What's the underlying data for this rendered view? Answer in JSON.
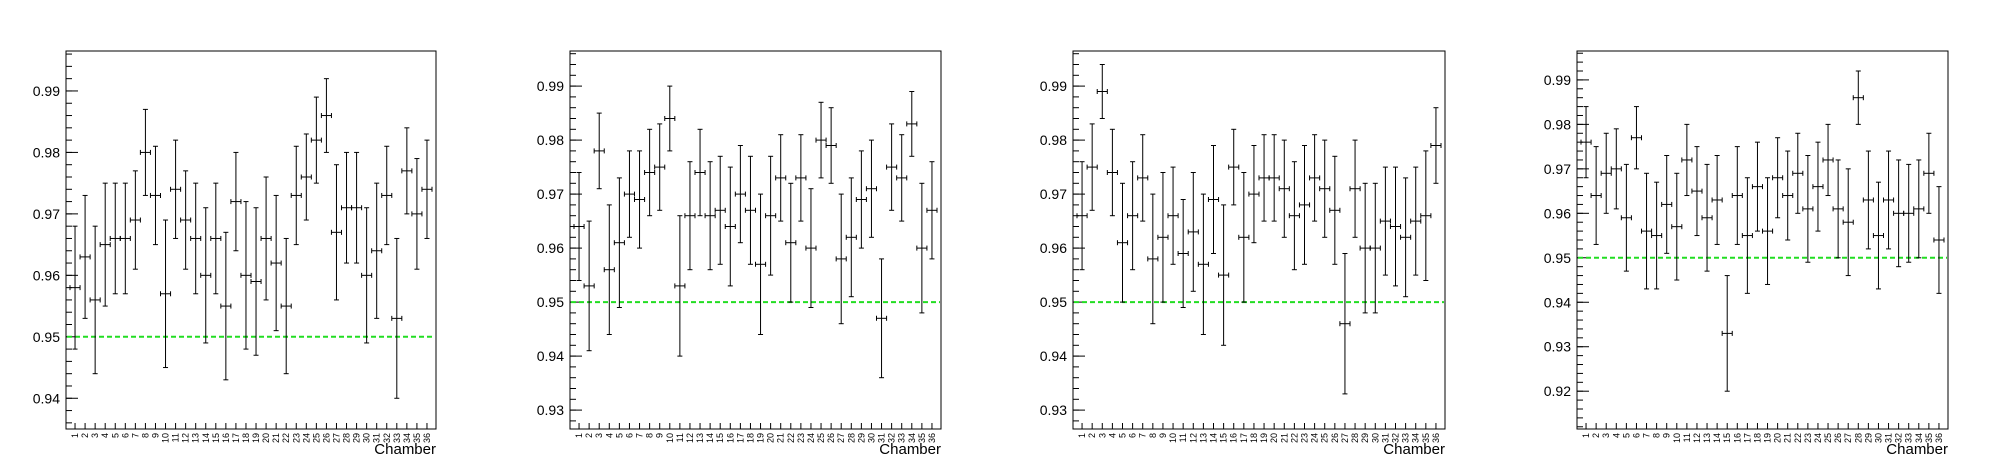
{
  "chart_data": [
    {
      "type": "scatter",
      "xlabel": "Chamber",
      "ylim": [
        0.935,
        0.9965
      ],
      "yticks": [
        0.94,
        0.95,
        0.96,
        0.97,
        0.98,
        0.99
      ],
      "ytick_labels": [
        "0.94",
        "0.95",
        "0.96",
        "0.97",
        "0.98",
        "0.99"
      ],
      "reference_line": 0.95,
      "reference_color": "#22dd22",
      "categories": [
        "1",
        "2",
        "3",
        "4",
        "5",
        "6",
        "7",
        "8",
        "9",
        "10",
        "11",
        "12",
        "13",
        "14",
        "15",
        "16",
        "17",
        "18",
        "19",
        "20",
        "21",
        "22",
        "23",
        "24",
        "25",
        "26",
        "27",
        "28",
        "29",
        "30",
        "31",
        "32",
        "33",
        "34",
        "35",
        "36"
      ],
      "category_labels": [
        "1",
        "2",
        "3",
        "4",
        "5",
        "6",
        "7",
        "8",
        "9",
        "10",
        "11",
        "12",
        "13",
        "14",
        "15",
        "16",
        "17",
        "18",
        "19",
        "20",
        "21",
        "22",
        "23",
        "24",
        "25",
        "26",
        "27",
        "28",
        "29",
        "30",
        "31",
        "32",
        "33",
        "34",
        "35",
        "36"
      ],
      "values": [
        0.958,
        0.963,
        0.956,
        0.965,
        0.966,
        0.966,
        0.969,
        0.98,
        0.973,
        0.957,
        0.974,
        0.969,
        0.966,
        0.96,
        0.966,
        0.955,
        0.972,
        0.96,
        0.959,
        0.966,
        0.962,
        0.955,
        0.973,
        0.976,
        0.982,
        0.986,
        0.967,
        0.971,
        0.971,
        0.96,
        0.964,
        0.973,
        0.953,
        0.977,
        0.97,
        0.974
      ],
      "errors": [
        0.01,
        0.01,
        0.012,
        0.01,
        0.009,
        0.009,
        0.008,
        0.007,
        0.008,
        0.012,
        0.008,
        0.008,
        0.009,
        0.011,
        0.009,
        0.012,
        0.008,
        0.012,
        0.012,
        0.01,
        0.011,
        0.011,
        0.008,
        0.007,
        0.007,
        0.006,
        0.011,
        0.009,
        0.009,
        0.011,
        0.011,
        0.008,
        0.013,
        0.007,
        0.009,
        0.008
      ]
    },
    {
      "type": "scatter",
      "xlabel": "Chamber",
      "ylim": [
        0.9265,
        0.9965
      ],
      "yticks": [
        0.93,
        0.94,
        0.95,
        0.96,
        0.97,
        0.98,
        0.99
      ],
      "ytick_labels": [
        "0.93",
        "0.94",
        "0.95",
        "0.96",
        "0.97",
        "0.98",
        "0.99"
      ],
      "reference_line": 0.95,
      "reference_color": "#22dd22",
      "categories": [
        "1",
        "2",
        "3",
        "4",
        "5",
        "6",
        "7",
        "8",
        "9",
        "10",
        "11",
        "12",
        "13",
        "14",
        "15",
        "16",
        "17",
        "18",
        "19",
        "20",
        "21",
        "22",
        "23",
        "24",
        "25",
        "26",
        "27",
        "28",
        "29",
        "30",
        "31",
        "32",
        "33",
        "34",
        "35",
        "36"
      ],
      "category_labels": [
        "1",
        "2",
        "3",
        "4",
        "5",
        "6",
        "7",
        "8",
        "9",
        "10",
        "11",
        "12",
        "13",
        "14",
        "15",
        "16",
        "17",
        "18",
        "19",
        "20",
        "21",
        "22",
        "23",
        "24",
        "25",
        "26",
        "27",
        "28",
        "29",
        "30",
        "31",
        "32",
        "33",
        "34",
        "35",
        "36"
      ],
      "values": [
        0.964,
        0.953,
        0.978,
        0.956,
        0.961,
        0.97,
        0.969,
        0.974,
        0.975,
        0.984,
        0.953,
        0.966,
        0.974,
        0.966,
        0.967,
        0.964,
        0.97,
        0.967,
        0.957,
        0.966,
        0.973,
        0.961,
        0.973,
        0.96,
        0.98,
        0.979,
        0.958,
        0.962,
        0.969,
        0.971,
        0.947,
        0.975,
        0.973,
        0.983,
        0.96,
        0.967
      ],
      "errors": [
        0.01,
        0.012,
        0.007,
        0.012,
        0.012,
        0.008,
        0.009,
        0.008,
        0.008,
        0.006,
        0.013,
        0.01,
        0.008,
        0.01,
        0.01,
        0.011,
        0.009,
        0.01,
        0.013,
        0.011,
        0.008,
        0.011,
        0.008,
        0.011,
        0.007,
        0.007,
        0.012,
        0.011,
        0.009,
        0.009,
        0.011,
        0.008,
        0.008,
        0.006,
        0.012,
        0.009
      ]
    },
    {
      "type": "scatter",
      "xlabel": "Chamber",
      "ylim": [
        0.9265,
        0.9965
      ],
      "yticks": [
        0.93,
        0.94,
        0.95,
        0.96,
        0.97,
        0.98,
        0.99
      ],
      "ytick_labels": [
        "0.93",
        "0.94",
        "0.95",
        "0.96",
        "0.97",
        "0.98",
        "0.99"
      ],
      "reference_line": 0.95,
      "reference_color": "#22dd22",
      "categories": [
        "1",
        "2",
        "3",
        "4",
        "5",
        "6",
        "7",
        "8",
        "9",
        "10",
        "11",
        "12",
        "13",
        "14",
        "15",
        "16",
        "17",
        "18",
        "19",
        "20",
        "21",
        "22",
        "23",
        "24",
        "25",
        "26",
        "27",
        "28",
        "29",
        "30",
        "31",
        "32",
        "33",
        "34",
        "35",
        "36"
      ],
      "category_labels": [
        "1",
        "2",
        "3",
        "4",
        "5",
        "6",
        "7",
        "8",
        "9",
        "10",
        "11",
        "12",
        "13",
        "14",
        "15",
        "16",
        "17",
        "18",
        "19",
        "20",
        "21",
        "22",
        "23",
        "24",
        "25",
        "26",
        "27",
        "28",
        "29",
        "30",
        "31",
        "32",
        "33",
        "34",
        "35",
        "36"
      ],
      "values": [
        0.966,
        0.975,
        0.989,
        0.974,
        0.961,
        0.966,
        0.973,
        0.958,
        0.962,
        0.966,
        0.959,
        0.963,
        0.957,
        0.969,
        0.955,
        0.975,
        0.962,
        0.97,
        0.973,
        0.973,
        0.971,
        0.966,
        0.968,
        0.973,
        0.971,
        0.967,
        0.946,
        0.971,
        0.96,
        0.96,
        0.965,
        0.964,
        0.962,
        0.965,
        0.966,
        0.979
      ],
      "errors": [
        0.01,
        0.008,
        0.005,
        0.008,
        0.011,
        0.01,
        0.008,
        0.012,
        0.012,
        0.009,
        0.01,
        0.011,
        0.013,
        0.01,
        0.013,
        0.007,
        0.012,
        0.009,
        0.008,
        0.008,
        0.009,
        0.01,
        0.011,
        0.008,
        0.009,
        0.01,
        0.013,
        0.009,
        0.012,
        0.012,
        0.01,
        0.011,
        0.011,
        0.01,
        0.012,
        0.007
      ]
    },
    {
      "type": "scatter",
      "xlabel": "Chamber",
      "ylim": [
        0.9115,
        0.9965
      ],
      "yticks": [
        0.92,
        0.93,
        0.94,
        0.95,
        0.96,
        0.97,
        0.98,
        0.99
      ],
      "ytick_labels": [
        "0.92",
        "0.93",
        "0.94",
        "0.95",
        "0.96",
        "0.97",
        "0.98",
        "0.99"
      ],
      "reference_line": 0.95,
      "reference_color": "#22dd22",
      "categories": [
        "1",
        "2",
        "3",
        "4",
        "5",
        "6",
        "7",
        "8",
        "9",
        "10",
        "11",
        "12",
        "13",
        "14",
        "15",
        "16",
        "17",
        "18",
        "19",
        "20",
        "21",
        "22",
        "23",
        "24",
        "25",
        "26",
        "27",
        "28",
        "29",
        "30",
        "31",
        "32",
        "33",
        "34",
        "35",
        "36"
      ],
      "category_labels": [
        "1",
        "2",
        "3",
        "4",
        "5",
        "6",
        "7",
        "8",
        "9",
        "10",
        "11",
        "12",
        "13",
        "14",
        "15",
        "16",
        "17",
        "18",
        "19",
        "20",
        "21",
        "22",
        "23",
        "24",
        "25",
        "26",
        "27",
        "28",
        "29",
        "30",
        "31",
        "32",
        "33",
        "34",
        "35",
        "36"
      ],
      "values": [
        0.976,
        0.964,
        0.969,
        0.97,
        0.959,
        0.977,
        0.956,
        0.955,
        0.962,
        0.957,
        0.972,
        0.965,
        0.959,
        0.963,
        0.933,
        0.964,
        0.955,
        0.966,
        0.956,
        0.968,
        0.964,
        0.969,
        0.961,
        0.966,
        0.972,
        0.961,
        0.958,
        0.986,
        0.963,
        0.955,
        0.963,
        0.96,
        0.96,
        0.961,
        0.969,
        0.954
      ],
      "errors": [
        0.008,
        0.011,
        0.009,
        0.009,
        0.012,
        0.007,
        0.013,
        0.012,
        0.011,
        0.012,
        0.008,
        0.01,
        0.012,
        0.01,
        0.013,
        0.011,
        0.013,
        0.01,
        0.012,
        0.009,
        0.01,
        0.009,
        0.012,
        0.01,
        0.008,
        0.011,
        0.012,
        0.006,
        0.011,
        0.012,
        0.011,
        0.012,
        0.011,
        0.011,
        0.009,
        0.012
      ]
    }
  ]
}
